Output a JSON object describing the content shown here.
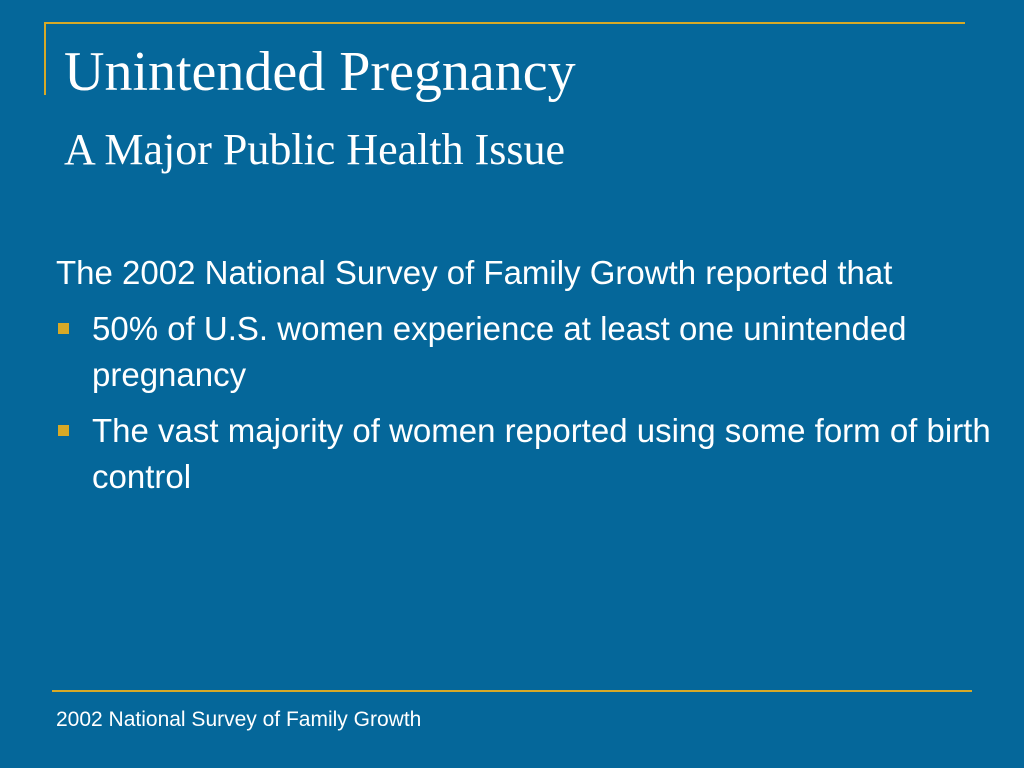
{
  "slide": {
    "title": "Unintended Pregnancy",
    "subtitle": "A Major Public Health Issue",
    "intro": "The 2002 National Survey of Family Growth reported that",
    "bullets": [
      "50% of U.S. women experience at least one unintended pregnancy",
      "The vast majority of women reported using some form of birth control"
    ],
    "footer": "2002 National Survey of Family Growth"
  },
  "colors": {
    "background": "#05679a",
    "accent": "#d7a927",
    "text": "#ffffff"
  },
  "icons": {
    "bullet": "square-bullet-icon"
  }
}
